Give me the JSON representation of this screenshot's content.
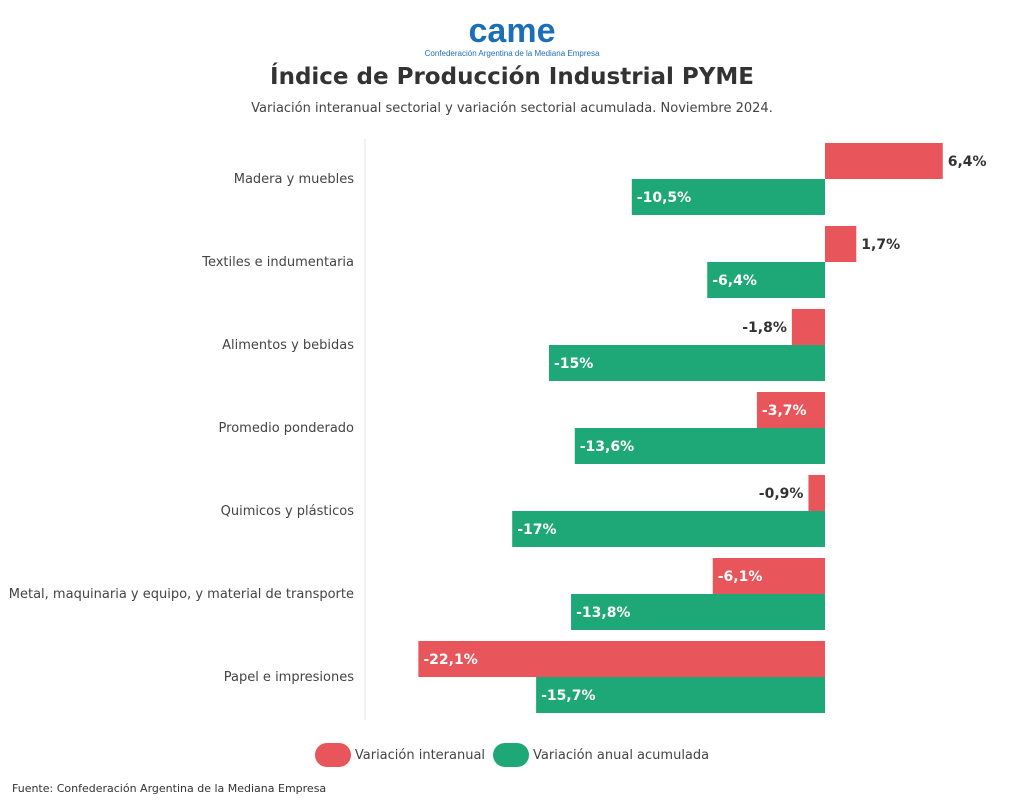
{
  "logo": {
    "text": "came",
    "tagline": "Confederación Argentina de la Mediana Empresa"
  },
  "colors": {
    "interanual": "#E8555A",
    "acumulada": "#1FA877",
    "logo": "#1B6FB7"
  },
  "source": "Fuente: Confederación Argentina de la Mediana Empresa",
  "chart_data": {
    "type": "bar",
    "orientation": "horizontal",
    "title": "Índice de Producción Industrial PYME",
    "subtitle": "Variación interanual sectorial y variación sectorial acumulada. Noviembre 2024.",
    "categories": [
      "Madera y muebles",
      "Textiles e indumentaria",
      "Alimentos y bebidas",
      "Promedio ponderado",
      "Quimicos y plásticos",
      "Metal, maquinaria y equipo, y material de transporte",
      "Papel e impresiones"
    ],
    "series": [
      {
        "name": "Variación interanual",
        "values": [
          6.4,
          1.7,
          -1.8,
          -3.7,
          -0.9,
          -6.1,
          -22.1
        ],
        "labels": [
          "6,4%",
          "1,7%",
          "-1,8%",
          "-3,7%",
          "-0,9%",
          "-6,1%",
          "-22,1%"
        ]
      },
      {
        "name": "Variación anual acumulada",
        "values": [
          -10.5,
          -6.4,
          -15,
          -13.6,
          -17,
          -13.8,
          -15.7
        ],
        "labels": [
          "-10,5%",
          "-6,4%",
          "-15%",
          "-13,6%",
          "-17%",
          "-13,8%",
          "-15,7%"
        ]
      }
    ],
    "xlim": [
      -25,
      9
    ],
    "grid": false,
    "legend": "bottom"
  }
}
